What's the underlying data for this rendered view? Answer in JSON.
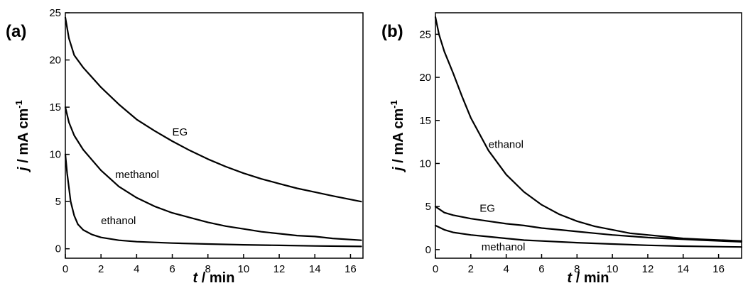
{
  "chart_data": [
    {
      "type": "line",
      "panel_label": "(a)",
      "xlabel_var": "t",
      "xlabel_unit": " / min",
      "ylabel_var": "j",
      "ylabel_unit": " / mA cm",
      "ylabel_sup": "-1",
      "xlim": [
        0,
        16.7
      ],
      "ylim": [
        -1,
        25
      ],
      "xticks": [
        "0",
        "2",
        "4",
        "6",
        "8",
        "10",
        "12",
        "14",
        "16"
      ],
      "yticks": [
        "0",
        "5",
        "10",
        "15",
        "20",
        "25"
      ],
      "grid": false,
      "line_color": "#000000",
      "series": [
        {
          "name": "EG",
          "label_at": [
            6.0,
            12.0
          ],
          "points": [
            [
              0,
              24.5
            ],
            [
              0.2,
              22.3
            ],
            [
              0.5,
              20.5
            ],
            [
              1,
              19.2
            ],
            [
              2,
              17.1
            ],
            [
              3,
              15.3
            ],
            [
              4,
              13.7
            ],
            [
              5,
              12.5
            ],
            [
              6,
              11.4
            ],
            [
              7,
              10.4
            ],
            [
              8,
              9.5
            ],
            [
              9,
              8.7
            ],
            [
              10,
              8.0
            ],
            [
              11,
              7.4
            ],
            [
              12,
              6.9
            ],
            [
              13,
              6.4
            ],
            [
              14,
              6.0
            ],
            [
              15,
              5.6
            ],
            [
              16.6,
              5.0
            ]
          ]
        },
        {
          "name": "methanol",
          "label_at": [
            2.8,
            7.5
          ],
          "points": [
            [
              0,
              15.0
            ],
            [
              0.2,
              13.4
            ],
            [
              0.5,
              12.0
            ],
            [
              1,
              10.5
            ],
            [
              2,
              8.3
            ],
            [
              3,
              6.6
            ],
            [
              4,
              5.4
            ],
            [
              5,
              4.5
            ],
            [
              6,
              3.8
            ],
            [
              7,
              3.3
            ],
            [
              8,
              2.8
            ],
            [
              9,
              2.4
            ],
            [
              10,
              2.1
            ],
            [
              11,
              1.8
            ],
            [
              12,
              1.6
            ],
            [
              13,
              1.4
            ],
            [
              14,
              1.3
            ],
            [
              15,
              1.1
            ],
            [
              16.6,
              0.9
            ]
          ]
        },
        {
          "name": "ethanol",
          "label_at": [
            2.0,
            2.6
          ],
          "points": [
            [
              0,
              10.0
            ],
            [
              0.1,
              8.0
            ],
            [
              0.2,
              6.5
            ],
            [
              0.3,
              5.0
            ],
            [
              0.5,
              3.5
            ],
            [
              0.7,
              2.6
            ],
            [
              1,
              2.0
            ],
            [
              1.5,
              1.5
            ],
            [
              2,
              1.2
            ],
            [
              3,
              0.9
            ],
            [
              4,
              0.75
            ],
            [
              6,
              0.6
            ],
            [
              8,
              0.5
            ],
            [
              10,
              0.42
            ],
            [
              12,
              0.36
            ],
            [
              14,
              0.3
            ],
            [
              16.6,
              0.25
            ]
          ]
        }
      ]
    },
    {
      "type": "line",
      "panel_label": "(b)",
      "xlabel_var": "t",
      "xlabel_unit": " / min",
      "ylabel_var": "j",
      "ylabel_unit": " / mA cm",
      "ylabel_sup": "-1",
      "xlim": [
        0,
        17.3
      ],
      "ylim": [
        -1,
        27.5
      ],
      "xticks": [
        "0",
        "2",
        "4",
        "6",
        "8",
        "10",
        "12",
        "14",
        "16"
      ],
      "yticks": [
        "0",
        "5",
        "10",
        "15",
        "20",
        "25"
      ],
      "grid": false,
      "line_color": "#000000",
      "series": [
        {
          "name": "ethanol",
          "label_at": [
            3.0,
            11.8
          ],
          "points": [
            [
              0,
              27.0
            ],
            [
              0.2,
              25.0
            ],
            [
              0.5,
              23.0
            ],
            [
              1,
              20.5
            ],
            [
              1.5,
              17.8
            ],
            [
              2,
              15.3
            ],
            [
              3,
              11.5
            ],
            [
              4,
              8.7
            ],
            [
              5,
              6.7
            ],
            [
              6,
              5.2
            ],
            [
              7,
              4.1
            ],
            [
              8,
              3.3
            ],
            [
              9,
              2.7
            ],
            [
              10,
              2.3
            ],
            [
              11,
              1.9
            ],
            [
              12,
              1.7
            ],
            [
              13,
              1.5
            ],
            [
              14,
              1.3
            ],
            [
              15,
              1.2
            ],
            [
              17.3,
              1.0
            ]
          ]
        },
        {
          "name": "EG",
          "label_at": [
            2.5,
            4.4
          ],
          "points": [
            [
              0,
              5.0
            ],
            [
              0.5,
              4.3
            ],
            [
              1,
              4.0
            ],
            [
              2,
              3.6
            ],
            [
              3,
              3.3
            ],
            [
              4,
              3.0
            ],
            [
              5,
              2.8
            ],
            [
              6,
              2.5
            ],
            [
              7,
              2.3
            ],
            [
              8,
              2.1
            ],
            [
              9,
              1.9
            ],
            [
              10,
              1.7
            ],
            [
              11,
              1.55
            ],
            [
              12,
              1.4
            ],
            [
              13,
              1.3
            ],
            [
              14,
              1.2
            ],
            [
              15,
              1.1
            ],
            [
              17.3,
              0.9
            ]
          ]
        },
        {
          "name": "methanol",
          "label_at": [
            2.6,
            -0.1
          ],
          "points": [
            [
              0,
              2.8
            ],
            [
              0.5,
              2.3
            ],
            [
              1,
              2.0
            ],
            [
              2,
              1.7
            ],
            [
              3,
              1.5
            ],
            [
              4,
              1.3
            ],
            [
              5,
              1.1
            ],
            [
              6,
              1.0
            ],
            [
              8,
              0.8
            ],
            [
              10,
              0.65
            ],
            [
              12,
              0.5
            ],
            [
              14,
              0.4
            ],
            [
              17.3,
              0.3
            ]
          ]
        }
      ]
    }
  ]
}
